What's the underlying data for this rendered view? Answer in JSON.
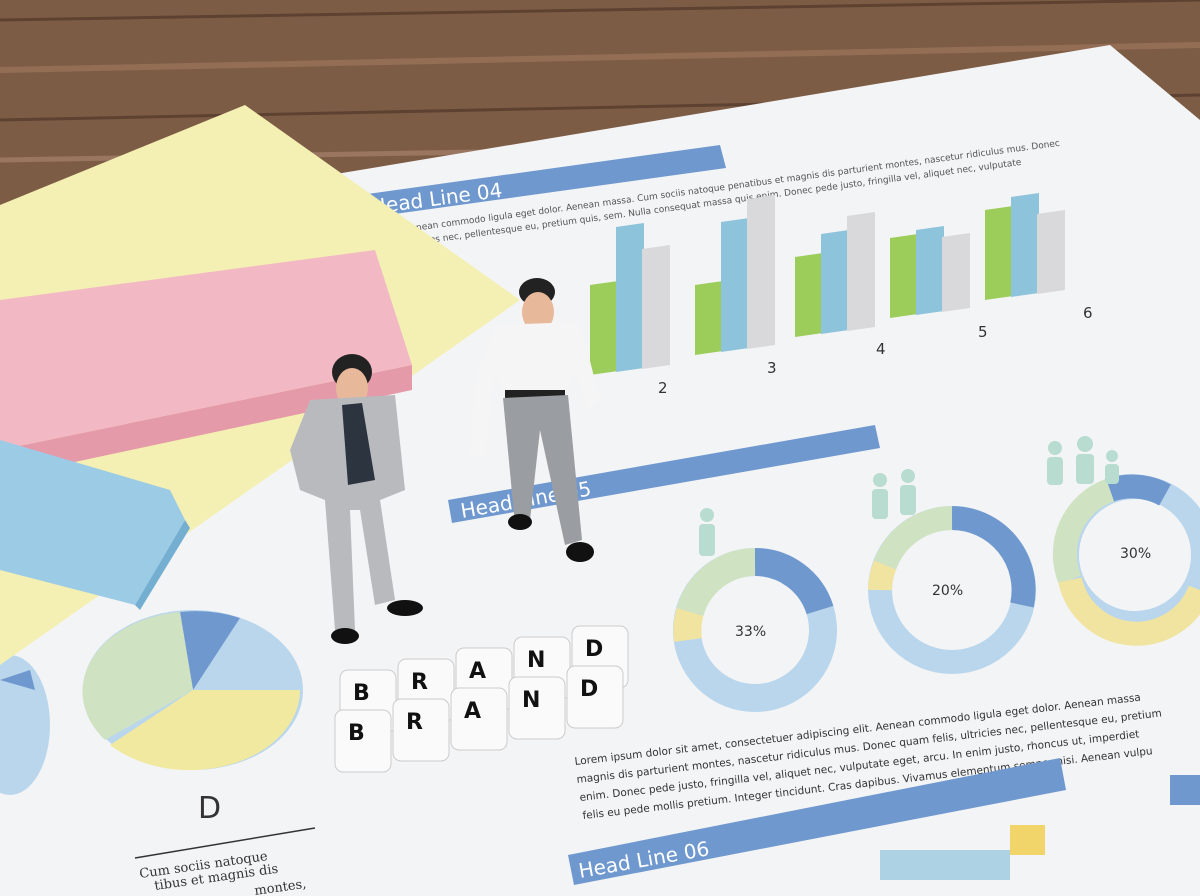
{
  "scene": {
    "headlines": [
      "Head Line 04",
      "Head Line 05",
      "Head Line 06"
    ],
    "bar_labels": [
      "2",
      "3",
      "4",
      "5",
      "6"
    ],
    "donut_percents": [
      "33%",
      "20%",
      "30%"
    ],
    "pie_label": "D",
    "blocks_top": [
      "B",
      "R",
      "A",
      "N",
      "D"
    ],
    "blocks_bottom": [
      "B",
      "R",
      "A",
      "N",
      "D"
    ],
    "paragraph_lines": [
      "Lorem ipsum dolor sit amet, consectetuer adipiscing elit. Aenean commodo ligula eget dolor. Aenean massa",
      "magnis dis parturient montes, nascetur ridiculus mus. Donec quam felis, ultricies nec, pellentesque eu, pretium",
      "enim. Donec pede justo, fringilla vel, aliquet nec, vulputate eget, arcu. In enim justo, rhoncus ut, imperdiet",
      "felis eu pede mollis pretium. Integer tincidunt. Cras dapibus. Vivamus elementum semper nisi. Aenean vulpu"
    ],
    "top_text_lines": [
      "Aenean commodo ligula eget dolor. Aenean massa. Cum sociis natoque penatibus et magnis dis parturient montes, nascetur ridiculus mus. Donec",
      "ultricies nec, pellentesque eu, pretium quis, sem. Nulla consequat massa quis enim. Donec pede justo, fringilla vel, aliquet nec, vulputate"
    ],
    "cum_lines": [
      "Cum sociis natoque",
      "tibus et magnis dis",
      "montes,"
    ],
    "colors": {
      "wood": "#7a5a45",
      "paper": "#f4f5f7",
      "headline_blue": "#6f98cf",
      "bar_green": "#9ccc5a",
      "bar_blue": "#8ec3dc",
      "bar_gray": "#d9d9dc",
      "sticky_yellow": "#f4f0b0",
      "sticky_pink": "#f2b8c4",
      "sticky_blue": "#9ccbe6"
    }
  }
}
